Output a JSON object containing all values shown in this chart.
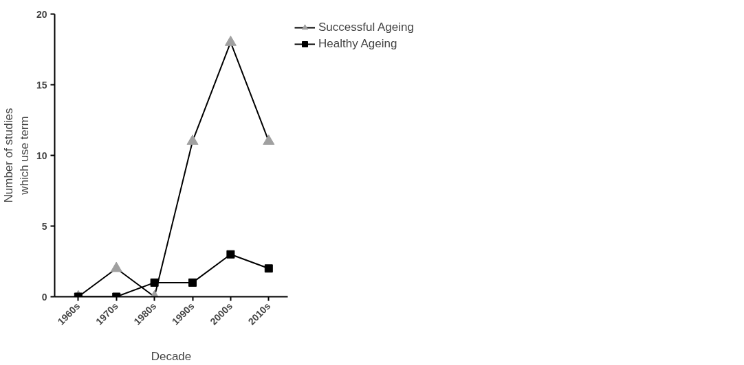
{
  "chart_data": {
    "type": "line",
    "xlabel": "Decade",
    "ylabel": "Number of studies\nwhich use term",
    "categories": [
      "1960s",
      "1970s",
      "1980s",
      "1990s",
      "2000s",
      "2010s"
    ],
    "series": [
      {
        "name": "Successful Ageing",
        "color": "#a0a0a0",
        "marker": "triangle",
        "values": [
          0,
          2,
          0,
          11,
          18,
          11
        ]
      },
      {
        "name": "Healthy Ageing",
        "color": "#000000",
        "marker": "square",
        "values": [
          0,
          0,
          1,
          1,
          3,
          2
        ]
      }
    ],
    "ylim": [
      0,
      20
    ],
    "yticks": [
      0,
      5,
      10,
      15,
      20
    ],
    "grid": false,
    "legend": "top right",
    "line_style": "solid"
  }
}
